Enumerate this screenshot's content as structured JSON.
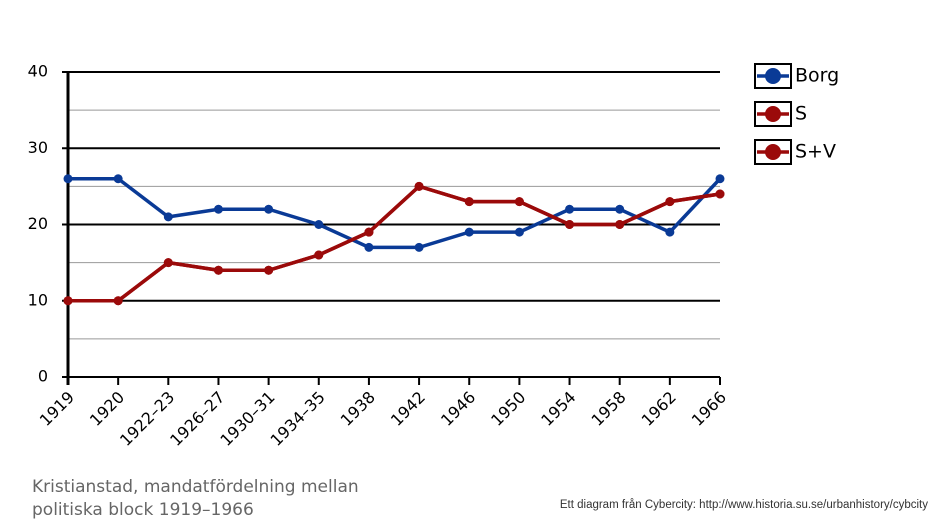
{
  "chart_data": {
    "type": "line",
    "caption": [
      "Kristianstad, mandatfördelning mellan",
      "politiska block 1919–1966"
    ],
    "credit": "Ett diagram från Cybercity: http://www.historia.su.se/urbanhistory/cybcity",
    "categories": [
      "1919",
      "1920",
      "1922–23",
      "1926–27",
      "1930–31",
      "1934–35",
      "1938",
      "1942",
      "1946",
      "1950",
      "1954",
      "1958",
      "1962",
      "1966"
    ],
    "series": [
      {
        "name": "Borg",
        "color": "#0a3a96",
        "values": [
          26,
          26,
          21,
          22,
          22,
          20,
          17,
          17,
          19,
          19,
          22,
          22,
          19,
          26
        ]
      },
      {
        "name": "S",
        "color": "#9b0a0a",
        "values": [
          10,
          10,
          15,
          14,
          14,
          16,
          19,
          25,
          23,
          23,
          20,
          20,
          23,
          24
        ]
      },
      {
        "name": "S+V",
        "color": "#9b0a0a",
        "values": [
          10,
          10,
          15,
          14,
          14,
          16,
          19,
          25,
          23,
          23,
          20,
          20,
          23,
          24
        ]
      }
    ],
    "ylim": [
      0,
      40
    ],
    "yticks": [
      0,
      10,
      20,
      30,
      40
    ],
    "minor_yticks": [
      5,
      15,
      25,
      35
    ],
    "grid": true,
    "legend": "right"
  }
}
